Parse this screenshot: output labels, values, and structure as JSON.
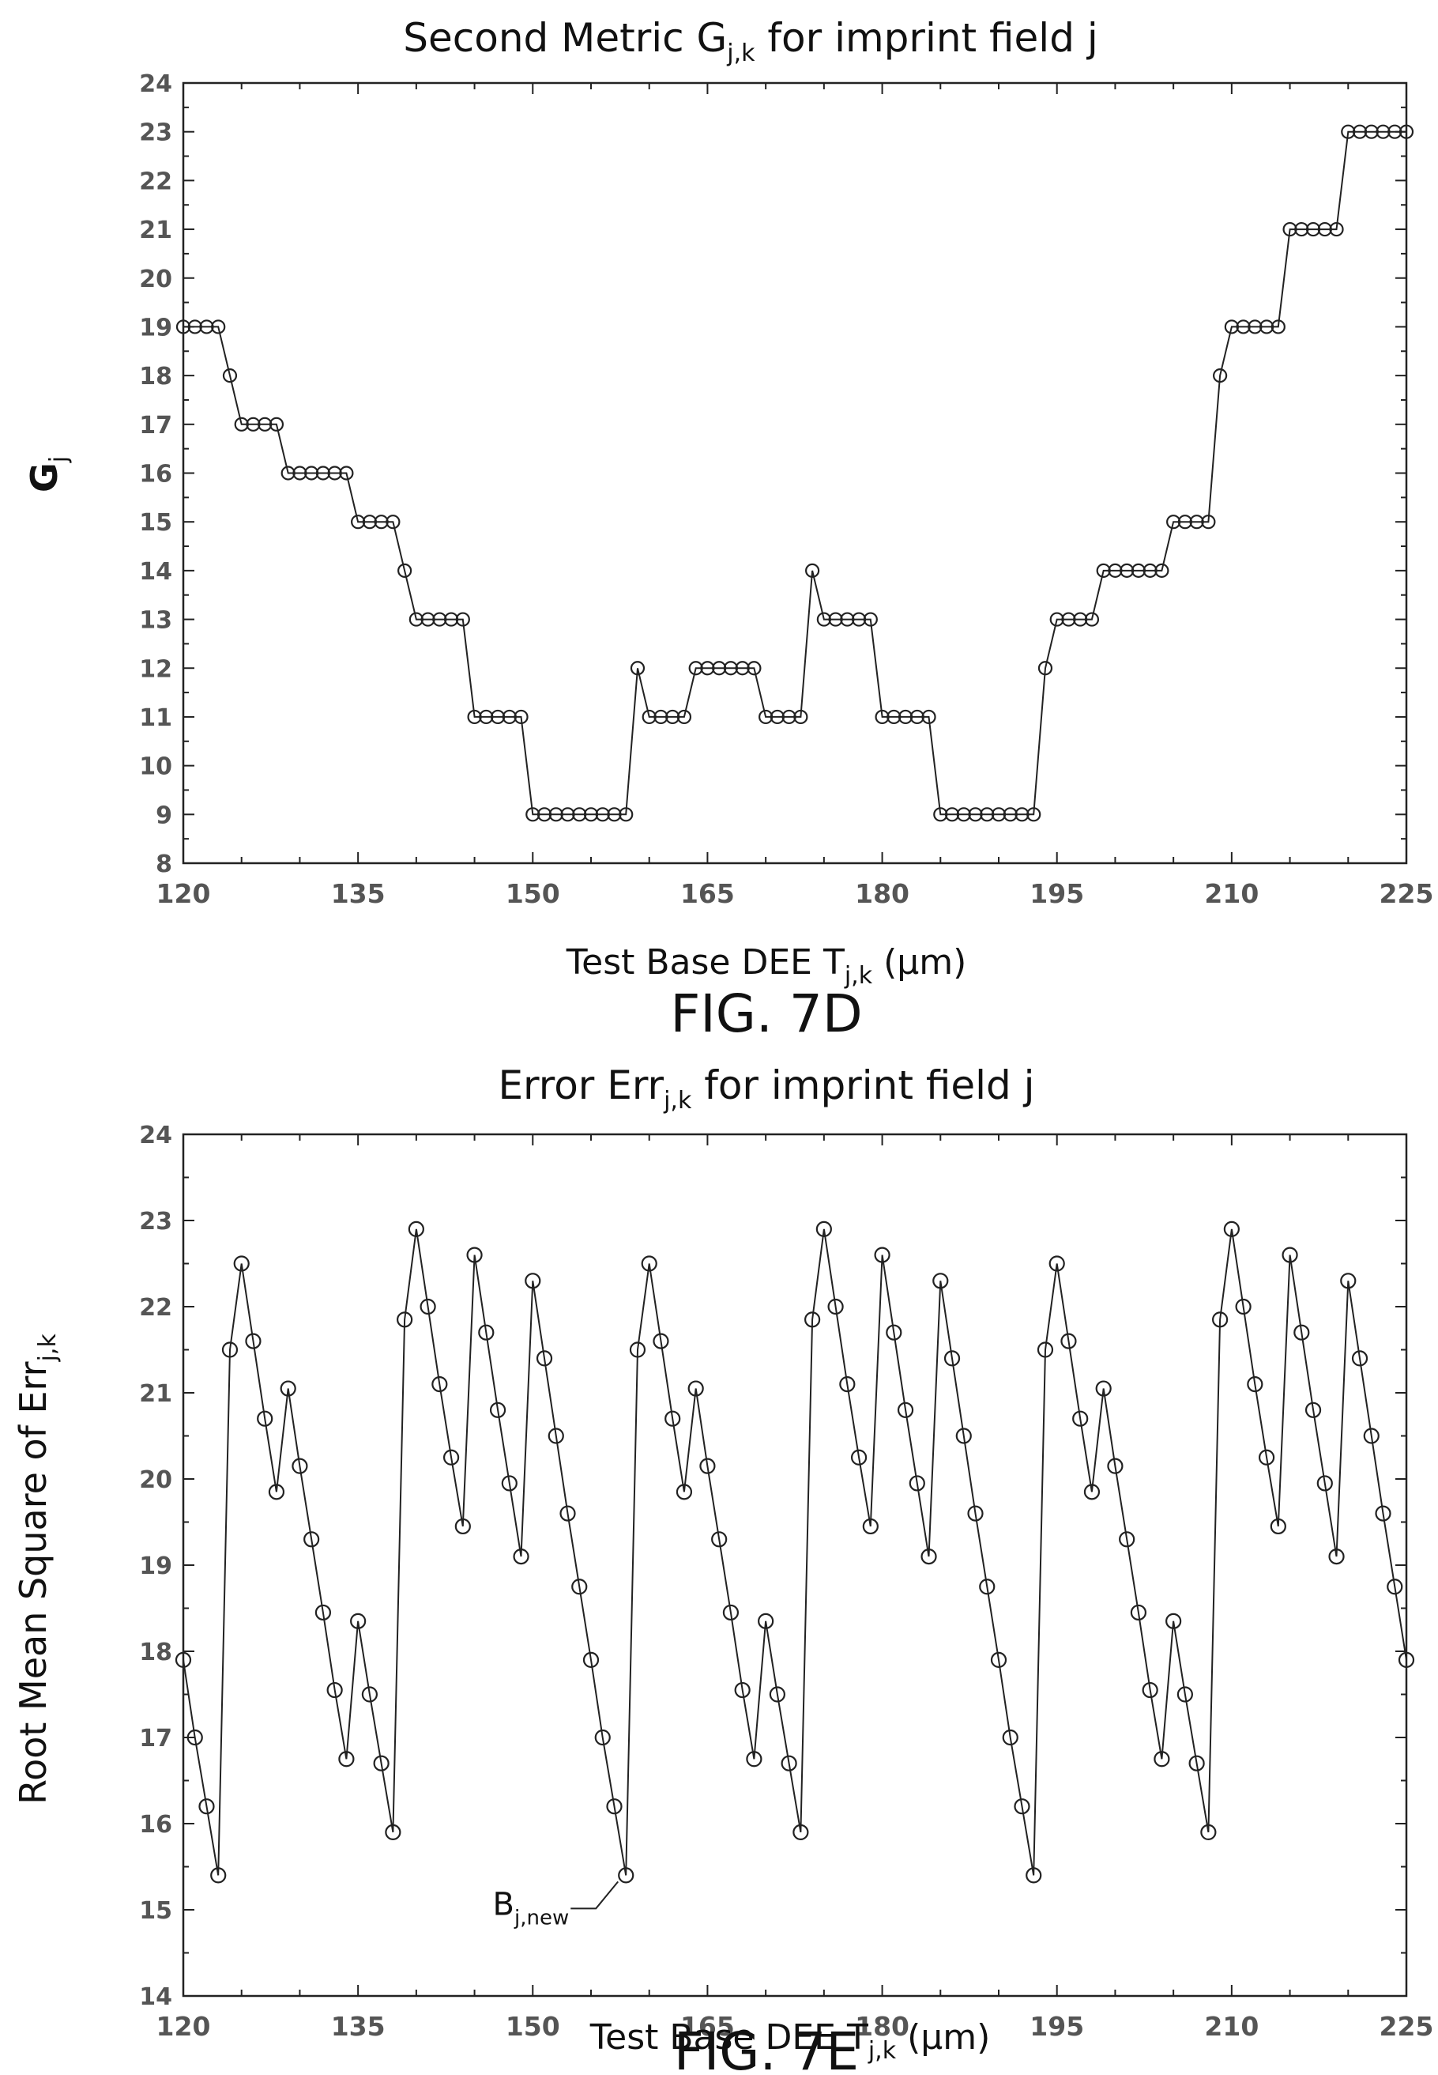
{
  "chart_data": [
    {
      "type": "line",
      "title_main": "Second Metric G",
      "title_sub": "j,k",
      "title_tail": " for imprint field j",
      "xlabel_main": "Test Base DEE T",
      "xlabel_sub": "j,k",
      "xlabel_tail": " (μm)",
      "ylabel_main": "G",
      "ylabel_sub": "j",
      "figure_label": "FIG. 7D",
      "xlim": [
        120,
        225
      ],
      "ylim": [
        8,
        24
      ],
      "xticks": [
        120,
        135,
        150,
        165,
        180,
        195,
        210,
        225
      ],
      "yticks": [
        8,
        9,
        10,
        11,
        12,
        13,
        14,
        15,
        16,
        17,
        18,
        19,
        20,
        21,
        22,
        23,
        24
      ],
      "grid": false,
      "marker": "circle",
      "x": [
        120,
        121,
        122,
        123,
        124,
        125,
        126,
        127,
        128,
        129,
        130,
        131,
        132,
        133,
        134,
        135,
        136,
        137,
        138,
        139,
        140,
        141,
        142,
        143,
        144,
        145,
        146,
        147,
        148,
        149,
        150,
        151,
        152,
        153,
        154,
        155,
        156,
        157,
        158,
        159,
        160,
        161,
        162,
        163,
        164,
        165,
        166,
        167,
        168,
        169,
        170,
        171,
        172,
        173,
        174,
        175,
        176,
        177,
        178,
        179,
        180,
        181,
        182,
        183,
        184,
        185,
        186,
        187,
        188,
        189,
        190,
        191,
        192,
        193,
        194,
        195,
        196,
        197,
        198,
        199,
        200,
        201,
        202,
        203,
        204,
        205,
        206,
        207,
        208,
        209,
        210,
        211,
        212,
        213,
        214,
        215,
        216,
        217,
        218,
        219,
        220,
        221,
        222,
        223,
        224,
        225
      ],
      "y": [
        19,
        19,
        19,
        19,
        18,
        17,
        17,
        17,
        17,
        16,
        16,
        16,
        16,
        16,
        16,
        15,
        15,
        15,
        15,
        14,
        13,
        13,
        13,
        13,
        13,
        11,
        11,
        11,
        11,
        11,
        9,
        9,
        9,
        9,
        9,
        9,
        9,
        9,
        9,
        12,
        11,
        11,
        11,
        11,
        12,
        12,
        12,
        12,
        12,
        12,
        11,
        11,
        11,
        11,
        14,
        13,
        13,
        13,
        13,
        13,
        11,
        11,
        11,
        11,
        11,
        9,
        9,
        9,
        9,
        9,
        9,
        9,
        9,
        9,
        12,
        13,
        13,
        13,
        13,
        14,
        14,
        14,
        14,
        14,
        14,
        15,
        15,
        15,
        15,
        18,
        19,
        19,
        19,
        19,
        19,
        21,
        21,
        21,
        21,
        21,
        23,
        23,
        23,
        23,
        23,
        23
      ]
    },
    {
      "type": "line",
      "title_main": "Error Err",
      "title_sub": "j,k",
      "title_tail": " for imprint field j",
      "xlabel_main": "Test Base DEE T",
      "xlabel_sub": "j,k",
      "xlabel_tail": " (μm)",
      "ylabel_main": "Root Mean Square of Err",
      "ylabel_sub": "j,k",
      "figure_label": "FIG. 7E",
      "xlim": [
        120,
        225
      ],
      "ylim": [
        14,
        24
      ],
      "xticks": [
        120,
        135,
        150,
        165,
        180,
        195,
        210,
        225
      ],
      "yticks": [
        14,
        15,
        16,
        17,
        18,
        19,
        20,
        21,
        22,
        23,
        24
      ],
      "grid": false,
      "marker": "circle",
      "annotation": {
        "main": "B",
        "sub": "j,new",
        "x": 158,
        "y": 15.4
      },
      "x": [
        120,
        121,
        122,
        123,
        124,
        125,
        126,
        127,
        128,
        129,
        130,
        131,
        132,
        133,
        134,
        135,
        136,
        137,
        138,
        139,
        140,
        141,
        142,
        143,
        144,
        145,
        146,
        147,
        148,
        149,
        150,
        151,
        152,
        153,
        154,
        155,
        156,
        157,
        158,
        159,
        160,
        161,
        162,
        163,
        164,
        165,
        166,
        167,
        168,
        169,
        170,
        171,
        172,
        173,
        174,
        175,
        176,
        177,
        178,
        179,
        180,
        181,
        182,
        183,
        184,
        185,
        186,
        187,
        188,
        189,
        190,
        191,
        192,
        193,
        194,
        195,
        196,
        197,
        198,
        199,
        200,
        201,
        202,
        203,
        204,
        205,
        206,
        207,
        208,
        209,
        210,
        211,
        212,
        213,
        214,
        215,
        216,
        217,
        218,
        219,
        220,
        221,
        222,
        223,
        224,
        225
      ],
      "y": [
        17.9,
        17.0,
        16.2,
        15.4,
        21.5,
        22.5,
        21.6,
        20.7,
        19.85,
        21.05,
        20.15,
        19.3,
        18.45,
        17.55,
        16.75,
        18.35,
        17.5,
        16.7,
        15.9,
        21.85,
        22.9,
        22.0,
        21.1,
        20.25,
        19.45,
        22.6,
        21.7,
        20.8,
        19.95,
        19.1,
        22.3,
        21.4,
        20.5,
        19.6,
        18.75,
        17.9,
        17.0,
        16.2,
        15.4,
        21.5,
        22.5,
        21.6,
        20.7,
        19.85,
        21.05,
        20.15,
        19.3,
        18.45,
        17.55,
        16.75,
        18.35,
        17.5,
        16.7,
        15.9,
        21.85,
        22.9,
        22.0,
        21.1,
        20.25,
        19.45,
        22.6,
        21.7,
        20.8,
        19.95,
        19.1,
        22.3,
        21.4,
        20.5,
        19.6,
        18.75,
        17.9,
        17.0,
        16.2,
        15.4,
        21.5,
        22.5,
        21.6,
        20.7,
        19.85,
        21.05,
        20.15,
        19.3,
        18.45,
        17.55,
        16.75,
        18.35,
        17.5,
        16.7,
        15.9,
        21.85,
        22.9,
        22.0,
        21.1,
        20.25,
        19.45,
        22.6,
        21.7,
        20.8,
        19.95,
        19.1,
        22.3,
        21.4,
        20.5,
        19.6,
        18.75,
        17.9
      ]
    }
  ]
}
